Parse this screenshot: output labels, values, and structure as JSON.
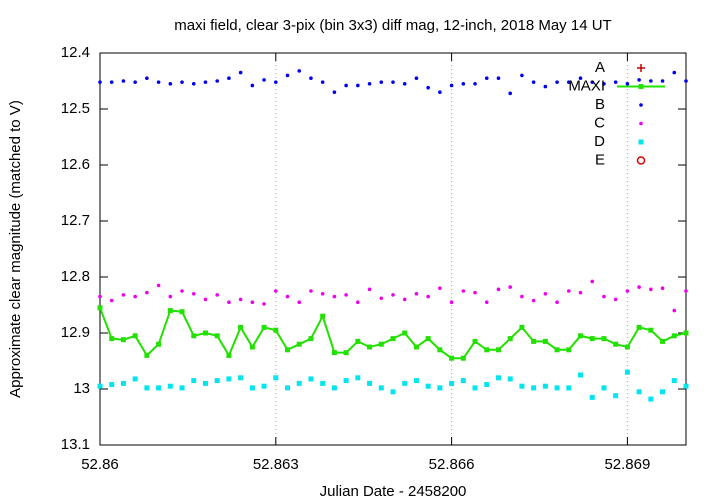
{
  "chart_data": {
    "type": "line",
    "title": "maxi field, clear 3-pix (bin 3x3) diff mag, 12-inch, 2018 May 14 UT",
    "x_label": "Julian Date - 2458200",
    "y_label": "Approximate clear magnitude (matched to V)",
    "x": [
      52.86,
      52.8602,
      52.8604,
      52.8606,
      52.8608,
      52.861,
      52.8612,
      52.8614,
      52.8616,
      52.8618,
      52.862,
      52.8622,
      52.8624,
      52.8626,
      52.8628,
      52.863,
      52.8632,
      52.8634,
      52.8636,
      52.8638,
      52.864,
      52.8642,
      52.8644,
      52.8646,
      52.8648,
      52.865,
      52.8652,
      52.8654,
      52.8656,
      52.8658,
      52.866,
      52.8662,
      52.8664,
      52.8666,
      52.8668,
      52.867,
      52.8672,
      52.8674,
      52.8676,
      52.8678,
      52.868,
      52.8682,
      52.8684,
      52.8686,
      52.8688,
      52.869,
      52.8692,
      52.8694,
      52.8696,
      52.8698,
      52.87
    ],
    "series": [
      {
        "name": "A",
        "color": "#cc0000",
        "marker": "plus",
        "line": false,
        "values": [
          null,
          null,
          null,
          null,
          null,
          null,
          null,
          null,
          null,
          null,
          null,
          null,
          null,
          null,
          null,
          null,
          null,
          null,
          null,
          null,
          null,
          null,
          null,
          null,
          null,
          null,
          null,
          null,
          null,
          null,
          null,
          null,
          null,
          null,
          null,
          null,
          null,
          null,
          null,
          null,
          null,
          null,
          null,
          null,
          null,
          null,
          null,
          null,
          null,
          null,
          null
        ]
      },
      {
        "name": "MAXI",
        "color": "#22e000",
        "marker": "square",
        "line": true,
        "values": [
          12.855,
          12.91,
          12.912,
          12.905,
          12.94,
          12.92,
          12.86,
          12.862,
          12.905,
          12.9,
          12.905,
          12.94,
          12.89,
          12.925,
          12.89,
          12.895,
          12.93,
          12.92,
          12.91,
          12.87,
          12.935,
          12.935,
          12.915,
          12.925,
          12.92,
          12.91,
          12.9,
          12.925,
          12.91,
          12.93,
          12.945,
          12.945,
          12.915,
          12.93,
          12.93,
          12.91,
          12.89,
          12.915,
          12.915,
          12.93,
          12.93,
          12.905,
          12.91,
          12.91,
          12.92,
          12.925,
          12.89,
          12.895,
          12.915,
          12.905,
          12.9
        ]
      },
      {
        "name": "B",
        "color": "#0000ee",
        "marker": "dot",
        "line": false,
        "values": [
          12.452,
          12.452,
          12.45,
          12.452,
          12.445,
          12.452,
          12.455,
          12.452,
          12.455,
          12.452,
          12.45,
          12.445,
          12.435,
          12.458,
          12.448,
          12.452,
          12.44,
          12.432,
          12.445,
          12.452,
          12.47,
          12.458,
          12.458,
          12.455,
          12.452,
          12.452,
          12.455,
          12.445,
          12.462,
          12.47,
          12.458,
          12.455,
          12.455,
          12.445,
          12.445,
          12.472,
          12.44,
          12.452,
          12.46,
          12.452,
          12.452,
          12.445,
          12.452,
          12.455,
          12.452,
          12.455,
          12.448,
          12.45,
          12.45,
          12.435,
          12.45
        ]
      },
      {
        "name": "C",
        "color": "#ee00ee",
        "marker": "dot",
        "line": false,
        "values": [
          12.835,
          12.842,
          12.832,
          12.835,
          12.828,
          12.815,
          12.835,
          12.825,
          12.83,
          12.84,
          12.832,
          12.845,
          12.84,
          12.845,
          12.848,
          12.825,
          12.835,
          12.845,
          12.825,
          12.83,
          12.835,
          12.832,
          12.845,
          12.822,
          12.838,
          12.832,
          12.84,
          12.83,
          12.835,
          12.82,
          12.845,
          12.825,
          12.828,
          12.845,
          12.822,
          12.818,
          12.835,
          12.842,
          12.83,
          12.845,
          12.825,
          12.828,
          12.808,
          12.835,
          12.84,
          12.825,
          12.818,
          12.822,
          12.82,
          12.86,
          12.825
        ]
      },
      {
        "name": "D",
        "color": "#00e5ee",
        "marker": "square",
        "line": false,
        "values": [
          12.995,
          12.992,
          12.99,
          12.982,
          12.998,
          12.998,
          12.995,
          12.998,
          12.985,
          12.99,
          12.985,
          12.982,
          12.98,
          12.998,
          12.995,
          12.98,
          12.998,
          12.99,
          12.982,
          12.99,
          12.998,
          12.985,
          12.98,
          12.99,
          12.998,
          13.005,
          12.99,
          12.985,
          12.995,
          12.998,
          12.99,
          12.985,
          12.998,
          12.992,
          12.98,
          12.982,
          12.995,
          12.998,
          12.995,
          12.998,
          12.998,
          12.975,
          13.015,
          12.998,
          13.012,
          12.97,
          13.005,
          13.018,
          13.005,
          12.985,
          12.995
        ]
      },
      {
        "name": "E",
        "color": "#dd0000",
        "marker": "circle",
        "line": false,
        "values": [
          null,
          null,
          null,
          null,
          null,
          null,
          null,
          null,
          null,
          null,
          null,
          null,
          null,
          null,
          null,
          null,
          null,
          null,
          null,
          null,
          null,
          null,
          null,
          null,
          null,
          null,
          null,
          null,
          null,
          null,
          null,
          null,
          null,
          null,
          null,
          null,
          null,
          null,
          null,
          null,
          null,
          null,
          null,
          null,
          null,
          null,
          null,
          null,
          null,
          null,
          null
        ]
      }
    ],
    "xlim": [
      52.86,
      52.87
    ],
    "xticks": [
      52.86,
      52.863,
      52.866,
      52.869
    ],
    "ylim": [
      12.4,
      13.1
    ],
    "yticks": [
      12.4,
      12.5,
      12.6,
      12.7,
      12.8,
      12.9,
      13,
      13.1
    ],
    "y_inverted": true,
    "grid_x": true,
    "legend": "top-right"
  }
}
